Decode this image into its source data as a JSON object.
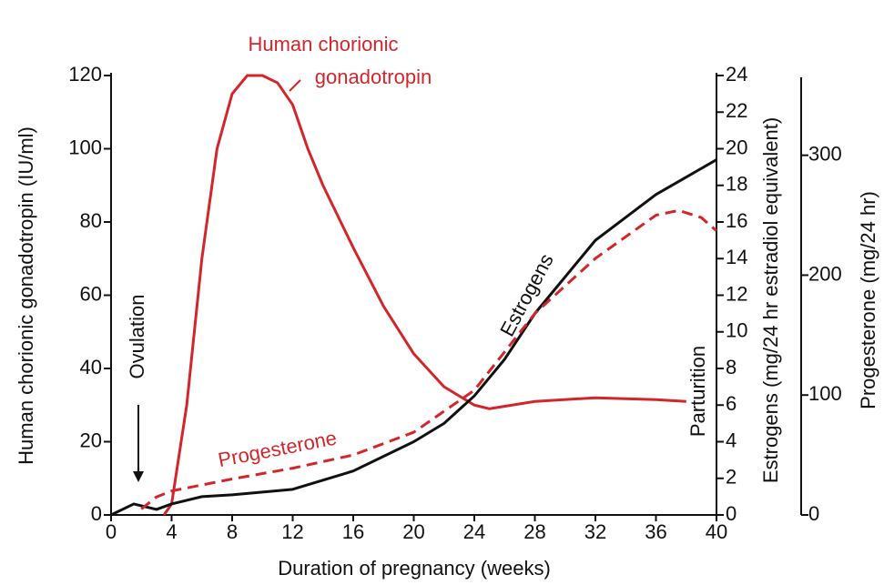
{
  "chart_data": {
    "type": "line",
    "x_label": "Duration of pregnancy (weeks)",
    "y_label": "Human chorionic gonadotropin (IU/ml)",
    "y2_label": "Estrogens (mg/24 hr estradiol equivalent)",
    "y3_label": "Progesterone (mg/24 hr)",
    "xlim": [
      0,
      40
    ],
    "xticks": [
      0,
      4,
      8,
      12,
      16,
      20,
      24,
      28,
      32,
      36,
      40
    ],
    "ylim": [
      0,
      120
    ],
    "yticks": [
      0,
      20,
      40,
      60,
      80,
      100,
      120
    ],
    "y2lim": [
      0,
      24
    ],
    "y2ticks": [
      0,
      2,
      4,
      6,
      8,
      10,
      12,
      14,
      16,
      18,
      20,
      22,
      24
    ],
    "y3lim": [
      0,
      365
    ],
    "y3ticks": [
      0,
      100,
      200,
      300
    ],
    "series": [
      {
        "name": "Human chorionic gonadotropin",
        "color": "#d3262b",
        "axis": "y",
        "dashed": false,
        "x": [
          3.5,
          4,
          5,
          6,
          7,
          8,
          9,
          10,
          11,
          12,
          13,
          14,
          16,
          18,
          20,
          22,
          24,
          25,
          28,
          32,
          36,
          38
        ],
        "values": [
          0,
          3,
          30,
          70,
          100,
          115,
          120,
          120,
          118,
          112,
          100,
          90,
          73,
          57,
          44,
          35,
          30,
          29,
          31,
          32,
          31.5,
          31
        ]
      },
      {
        "name": "Estrogens",
        "color": "#111111",
        "axis": "y2",
        "dashed": false,
        "x": [
          0,
          1,
          1.5,
          2,
          3,
          4,
          6,
          8,
          12,
          16,
          20,
          22,
          24,
          26,
          28,
          32,
          36,
          40
        ],
        "values": [
          0,
          0.4,
          0.6,
          0.5,
          0.3,
          0.6,
          1,
          1.1,
          1.4,
          2.4,
          4,
          5,
          6.5,
          8.5,
          11,
          15,
          17.5,
          19.4
        ]
      },
      {
        "name": "Progesterone",
        "color": "#d3262b",
        "axis": "y3",
        "dashed": true,
        "x": [
          2,
          3,
          4,
          8,
          12,
          16,
          20,
          24,
          28,
          32,
          36,
          37.5,
          39,
          40
        ],
        "values": [
          5,
          15,
          20,
          30,
          39,
          50,
          69,
          104,
          168,
          214,
          250,
          254,
          248,
          237
        ]
      }
    ],
    "annotations": [
      "Human chorionic",
      "gonadotropin",
      "Progesterone",
      "Estrogens",
      "Ovulation",
      "Parturition"
    ]
  }
}
